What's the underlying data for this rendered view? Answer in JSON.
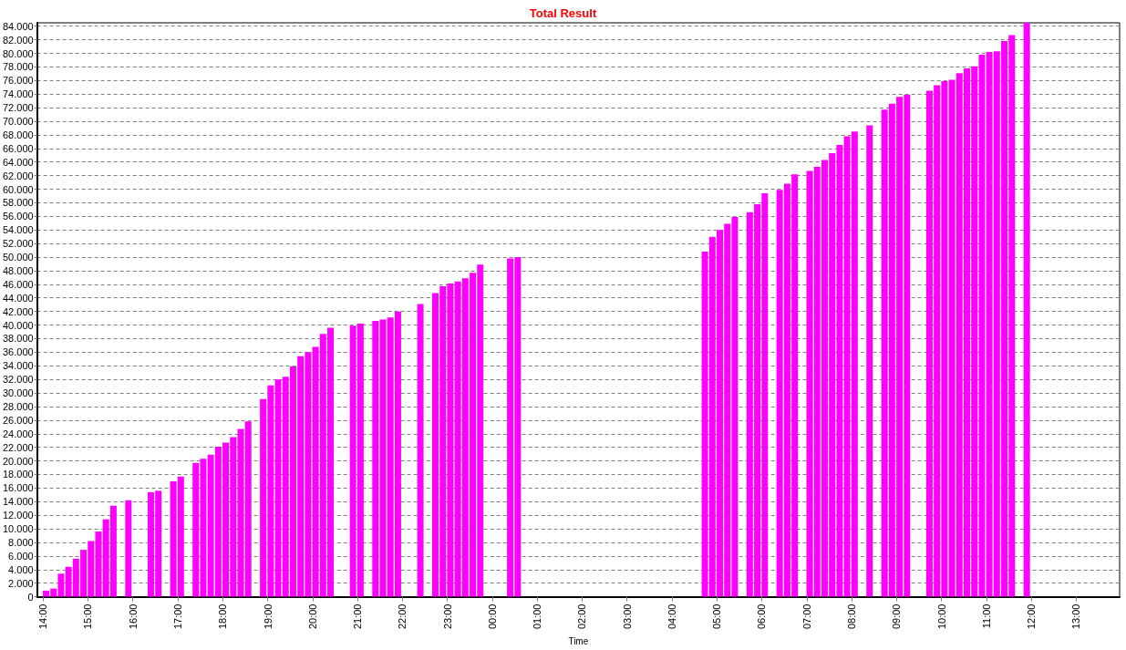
{
  "chart_data": {
    "type": "bar",
    "title": "Total Result",
    "xlabel": "Time",
    "color": "#ff00ff",
    "grid": "y",
    "x": [
      "--01-01T14:04",
      "--01-01T14:14",
      "--01-01T14:24",
      "--01-01T14:34",
      "--01-01T14:44",
      "--01-01T14:54",
      "--01-01T15:04",
      "--01-01T15:14",
      "--01-01T15:24",
      "--01-01T15:34",
      "--01-01T15:54",
      "--01-01T16:24",
      "--01-01T16:34",
      "--01-01T16:54",
      "--01-01T17:04",
      "--01-01T17:24",
      "--01-01T17:34",
      "--01-01T17:44",
      "--01-01T17:54",
      "--01-01T18:04",
      "--01-01T18:14",
      "--01-01T18:24",
      "--01-01T18:34",
      "--01-01T18:54",
      "--01-01T19:04",
      "--01-01T19:14",
      "--01-01T19:24",
      "--01-01T19:34",
      "--01-01T19:44",
      "--01-01T19:54",
      "--01-01T20:04",
      "--01-01T20:14",
      "--01-01T20:24",
      "--01-01T20:54",
      "--01-01T21:04",
      "--01-01T21:24",
      "--01-01T21:34",
      "--01-01T21:44",
      "--01-01T21:54",
      "--01-01T22:24",
      "--01-01T22:44",
      "--01-01T22:54",
      "--01-01T23:04",
      "--01-01T23:14",
      "--01-01T23:24",
      "--01-01T23:34",
      "--01-01T23:44",
      "--01-02T00:24",
      "--01-02T00:34",
      "--01-02T04:44",
      "--01-02T04:54",
      "--01-02T05:04",
      "--01-02T05:14",
      "--01-02T05:24",
      "--01-02T05:44",
      "--01-02T05:54",
      "--01-02T06:04",
      "--01-02T06:24",
      "--01-02T06:34",
      "--01-02T06:44",
      "--01-02T07:04",
      "--01-02T07:14",
      "--01-02T07:24",
      "--01-02T07:34",
      "--01-02T07:44",
      "--01-02T07:54",
      "--01-02T08:04",
      "--01-02T08:24",
      "--01-02T08:44",
      "--01-02T08:54",
      "--01-02T09:04",
      "--01-02T09:14",
      "--01-02T09:44",
      "--01-02T09:54",
      "--01-02T10:04",
      "--01-02T10:14",
      "--01-02T10:24",
      "--01-02T10:34",
      "--01-02T10:44",
      "--01-02T10:54",
      "--01-02T11:04",
      "--01-02T11:14",
      "--01-02T11:24",
      "--01-02T11:34",
      "--01-02T11:54"
    ],
    "values": [
      900,
      1200,
      3400,
      4400,
      5600,
      6900,
      8200,
      9600,
      11400,
      13400,
      14200,
      15400,
      15600,
      17000,
      17700,
      19700,
      20300,
      20900,
      22100,
      22700,
      23500,
      24700,
      25800,
      29100,
      31100,
      32000,
      32400,
      33900,
      35400,
      36000,
      36800,
      38700,
      39600,
      39900,
      40200,
      40600,
      40800,
      41100,
      42000,
      43100,
      44700,
      45700,
      46100,
      46400,
      46900,
      47700,
      48900,
      49800,
      50000,
      50800,
      53000,
      54000,
      54900,
      55900,
      56600,
      57800,
      59400,
      59900,
      60800,
      62200,
      62700,
      63300,
      64300,
      65300,
      66500,
      67800,
      68500,
      69400,
      71700,
      72600,
      73600,
      73900,
      74500,
      75300,
      75900,
      76100,
      77100,
      77800,
      78100,
      79800,
      80200,
      80300,
      81800,
      82700,
      84500
    ],
    "xlim": [
      "--01-01T13:52",
      "--01-02T13:58"
    ],
    "xticks": [
      {
        "value": "--01-01T14:00",
        "label": "14:00"
      },
      {
        "value": "--01-01T15:00",
        "label": "15:00"
      },
      {
        "value": "--01-01T16:00",
        "label": "16:00"
      },
      {
        "value": "--01-01T17:00",
        "label": "17:00"
      },
      {
        "value": "--01-01T18:00",
        "label": "18:00"
      },
      {
        "value": "--01-01T19:00",
        "label": "19:00"
      },
      {
        "value": "--01-01T20:00",
        "label": "20:00"
      },
      {
        "value": "--01-01T21:00",
        "label": "21:00"
      },
      {
        "value": "--01-01T22:00",
        "label": "22:00"
      },
      {
        "value": "--01-01T23:00",
        "label": "23:00"
      },
      {
        "value": "--01-02T00:00",
        "label": "00:00"
      },
      {
        "value": "--01-02T01:00",
        "label": "01:00"
      },
      {
        "value": "--01-02T02:00",
        "label": "02:00"
      },
      {
        "value": "--01-02T03:00",
        "label": "03:00"
      },
      {
        "value": "--01-02T04:00",
        "label": "04:00"
      },
      {
        "value": "--01-02T05:00",
        "label": "05:00"
      },
      {
        "value": "--01-02T06:00",
        "label": "06:00"
      },
      {
        "value": "--01-02T07:00",
        "label": "07:00"
      },
      {
        "value": "--01-02T08:00",
        "label": "08:00"
      },
      {
        "value": "--01-02T09:00",
        "label": "09:00"
      },
      {
        "value": "--01-02T10:00",
        "label": "10:00"
      },
      {
        "value": "--01-02T11:00",
        "label": "11:00"
      },
      {
        "value": "--01-02T12:00",
        "label": "12:00"
      },
      {
        "value": "--01-02T13:00",
        "label": "13:00"
      }
    ],
    "ylim": [
      0,
      84500
    ],
    "yticks": [
      0,
      {
        "value": 2000,
        "label": "2.000"
      },
      {
        "value": 4000,
        "label": "4.000"
      },
      {
        "value": 6000,
        "label": "6.000"
      },
      {
        "value": 8000,
        "label": "8.000"
      },
      {
        "value": 10000,
        "label": "10.000"
      },
      {
        "value": 12000,
        "label": "12.000"
      },
      {
        "value": 14000,
        "label": "14.000"
      },
      {
        "value": 16000,
        "label": "16.000"
      },
      {
        "value": 18000,
        "label": "18.000"
      },
      {
        "value": 20000,
        "label": "20.000"
      },
      {
        "value": 22000,
        "label": "22.000"
      },
      {
        "value": 24000,
        "label": "24.000"
      },
      {
        "value": 26000,
        "label": "26.000"
      },
      {
        "value": 28000,
        "label": "28.000"
      },
      {
        "value": 30000,
        "label": "30.000"
      },
      {
        "value": 32000,
        "label": "32.000"
      },
      {
        "value": 34000,
        "label": "34.000"
      },
      {
        "value": 36000,
        "label": "36.000"
      },
      {
        "value": 38000,
        "label": "38.000"
      },
      {
        "value": 40000,
        "label": "40.000"
      },
      {
        "value": 42000,
        "label": "42.000"
      },
      {
        "value": 44000,
        "label": "44.000"
      },
      {
        "value": 46000,
        "label": "46.000"
      },
      {
        "value": 48000,
        "label": "48.000"
      },
      {
        "value": 50000,
        "label": "50.000"
      },
      {
        "value": 52000,
        "label": "52.000"
      },
      {
        "value": 54000,
        "label": "54.000"
      },
      {
        "value": 56000,
        "label": "56.000"
      },
      {
        "value": 58000,
        "label": "58.000"
      },
      {
        "value": 60000,
        "label": "60.000"
      },
      {
        "value": 62000,
        "label": "62.000"
      },
      {
        "value": 64000,
        "label": "64.000"
      },
      {
        "value": 66000,
        "label": "66.000"
      },
      {
        "value": 68000,
        "label": "68.000"
      },
      {
        "value": 70000,
        "label": "70.000"
      },
      {
        "value": 72000,
        "label": "72.000"
      },
      {
        "value": 74000,
        "label": "74.000"
      },
      {
        "value": 76000,
        "label": "76.000"
      },
      {
        "value": 78000,
        "label": "78.000"
      },
      {
        "value": 80000,
        "label": "80.000"
      },
      {
        "value": 82000,
        "label": "82.000"
      },
      {
        "value": 84000,
        "label": "84.000"
      }
    ]
  }
}
